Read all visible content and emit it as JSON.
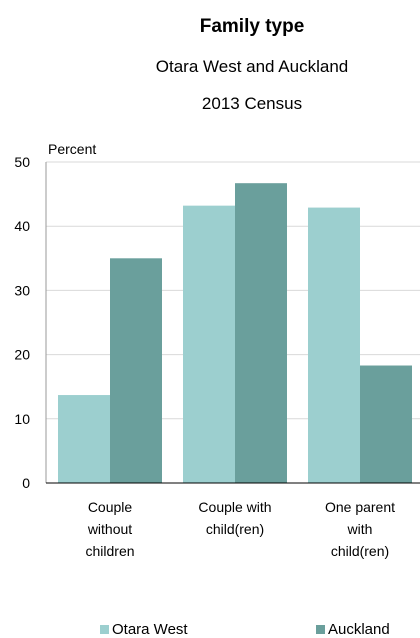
{
  "chart_data": {
    "type": "bar",
    "title": "Family type",
    "subtitle": [
      "Otara West and Auckland",
      "2013 Census"
    ],
    "ylabel": "Percent",
    "xlabel": "",
    "ylim": [
      0,
      50
    ],
    "yticks": [
      0,
      10,
      20,
      30,
      40,
      50
    ],
    "grid": true,
    "legend_position": "bottom",
    "categories": [
      [
        "Couple",
        "without",
        "children"
      ],
      [
        "Couple with",
        "child(ren)"
      ],
      [
        "One parent",
        "with",
        "child(ren)"
      ]
    ],
    "series": [
      {
        "name": "Otara West",
        "color": "#9ccfcf",
        "values": [
          13.7,
          43.2,
          42.9
        ]
      },
      {
        "name": "Auckland",
        "color": "#6a9f9c",
        "values": [
          35.0,
          46.7,
          18.3
        ]
      }
    ]
  }
}
